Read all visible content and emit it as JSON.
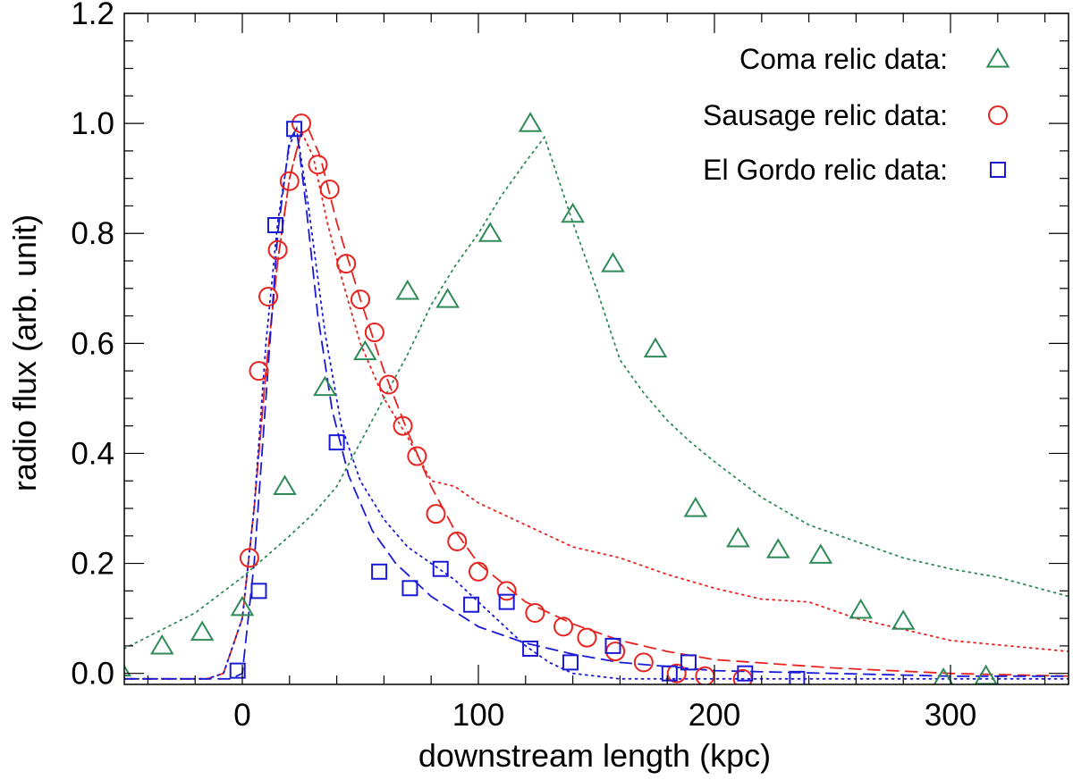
{
  "chart_data": {
    "type": "scatter",
    "title": "",
    "xlabel": "downstream length (kpc)",
    "ylabel": "radio flux (arb. unit)",
    "xlim": [
      -50,
      350
    ],
    "ylim": [
      -0.02,
      1.2
    ],
    "x_ticks": [
      0,
      100,
      200,
      300
    ],
    "x_tick_labels": [
      "0",
      "100",
      "200",
      "300"
    ],
    "y_ticks": [
      0.0,
      0.2,
      0.4,
      0.6,
      0.8,
      1.0,
      1.2
    ],
    "y_tick_labels": [
      "0.0",
      "0.2",
      "0.4",
      "0.6",
      "0.8",
      "1.0",
      "1.2"
    ],
    "grid": false,
    "legend": [
      {
        "label": "Coma relic data:",
        "marker": "triangle",
        "color": "#2e8b57"
      },
      {
        "label": "Sausage relic data:",
        "marker": "circle",
        "color": "#e8231f"
      },
      {
        "label": "El Gordo relic data:",
        "marker": "square",
        "color": "#1a1ad6"
      }
    ],
    "series": [
      {
        "name": "Coma relic data",
        "marker": "triangle",
        "color": "#2e8b57",
        "points": [
          [
            -52,
            0.01
          ],
          [
            -34,
            0.05
          ],
          [
            -17,
            0.075
          ],
          [
            0,
            0.12
          ],
          [
            18,
            0.34
          ],
          [
            35,
            0.52
          ],
          [
            52,
            0.585
          ],
          [
            70,
            0.695
          ],
          [
            87,
            0.68
          ],
          [
            105,
            0.8
          ],
          [
            122,
            1.0
          ],
          [
            140,
            0.835
          ],
          [
            157,
            0.745
          ],
          [
            175,
            0.59
          ],
          [
            192,
            0.3
          ],
          [
            210,
            0.245
          ],
          [
            227,
            0.225
          ],
          [
            245,
            0.215
          ],
          [
            262,
            0.115
          ],
          [
            280,
            0.095
          ],
          [
            297,
            -0.01
          ],
          [
            315,
            -0.005
          ]
        ]
      },
      {
        "name": "Sausage relic data",
        "marker": "circle",
        "color": "#e8231f",
        "points": [
          [
            3,
            0.21
          ],
          [
            7,
            0.55
          ],
          [
            11,
            0.685
          ],
          [
            15,
            0.77
          ],
          [
            20,
            0.895
          ],
          [
            25,
            1.0
          ],
          [
            32,
            0.925
          ],
          [
            37,
            0.88
          ],
          [
            44,
            0.745
          ],
          [
            50,
            0.68
          ],
          [
            56,
            0.62
          ],
          [
            62,
            0.525
          ],
          [
            68,
            0.45
          ],
          [
            74,
            0.395
          ],
          [
            82,
            0.29
          ],
          [
            91,
            0.24
          ],
          [
            100,
            0.185
          ],
          [
            112,
            0.15
          ],
          [
            124,
            0.11
          ],
          [
            136,
            0.085
          ],
          [
            146,
            0.065
          ],
          [
            158,
            0.04
          ],
          [
            170,
            0.02
          ],
          [
            184,
            0.0
          ],
          [
            196,
            -0.005
          ],
          [
            212,
            -0.01
          ]
        ]
      },
      {
        "name": "El Gordo relic data",
        "marker": "square",
        "color": "#1a1ad6",
        "points": [
          [
            -2,
            0.005
          ],
          [
            7,
            0.15
          ],
          [
            14,
            0.815
          ],
          [
            22,
            0.99
          ],
          [
            40,
            0.42
          ],
          [
            58,
            0.185
          ],
          [
            71,
            0.155
          ],
          [
            84,
            0.19
          ],
          [
            97,
            0.125
          ],
          [
            112,
            0.13
          ],
          [
            122,
            0.045
          ],
          [
            139,
            0.02
          ],
          [
            157,
            0.05
          ],
          [
            181,
            0.0
          ],
          [
            189,
            0.02
          ],
          [
            213,
            0.0
          ],
          [
            235,
            -0.01
          ]
        ]
      }
    ],
    "model_curves": [
      {
        "name": "Coma model (dotted)",
        "style": "dotted",
        "color": "#2e8b57",
        "points": [
          [
            -50,
            0.045
          ],
          [
            -20,
            0.11
          ],
          [
            0,
            0.175
          ],
          [
            20,
            0.25
          ],
          [
            30,
            0.29
          ],
          [
            40,
            0.34
          ],
          [
            50,
            0.42
          ],
          [
            60,
            0.5
          ],
          [
            70,
            0.58
          ],
          [
            80,
            0.67
          ],
          [
            90,
            0.74
          ],
          [
            100,
            0.8
          ],
          [
            110,
            0.87
          ],
          [
            120,
            0.93
          ],
          [
            128,
            0.975
          ],
          [
            140,
            0.82
          ],
          [
            150,
            0.7
          ],
          [
            160,
            0.57
          ],
          [
            170,
            0.51
          ],
          [
            180,
            0.46
          ],
          [
            190,
            0.42
          ],
          [
            200,
            0.385
          ],
          [
            220,
            0.32
          ],
          [
            240,
            0.27
          ],
          [
            260,
            0.24
          ],
          [
            280,
            0.21
          ],
          [
            300,
            0.19
          ],
          [
            320,
            0.175
          ],
          [
            350,
            0.14
          ]
        ]
      },
      {
        "name": "Sausage model 1 (dashed)",
        "style": "dashed",
        "color": "#e8231f",
        "points": [
          [
            -50,
            -0.01
          ],
          [
            -15,
            -0.01
          ],
          [
            -8,
            0.0
          ],
          [
            0,
            0.1
          ],
          [
            5,
            0.3
          ],
          [
            10,
            0.55
          ],
          [
            15,
            0.75
          ],
          [
            20,
            0.9
          ],
          [
            25,
            0.985
          ],
          [
            28,
            0.99
          ],
          [
            33,
            0.94
          ],
          [
            40,
            0.82
          ],
          [
            50,
            0.68
          ],
          [
            60,
            0.55
          ],
          [
            70,
            0.44
          ],
          [
            80,
            0.34
          ],
          [
            90,
            0.26
          ],
          [
            100,
            0.2
          ],
          [
            120,
            0.13
          ],
          [
            140,
            0.09
          ],
          [
            160,
            0.06
          ],
          [
            180,
            0.04
          ],
          [
            200,
            0.025
          ],
          [
            250,
            0.01
          ],
          [
            300,
            0.0
          ],
          [
            350,
            -0.005
          ]
        ]
      },
      {
        "name": "Sausage model 2 (dotted)",
        "style": "dotted",
        "color": "#e8231f",
        "points": [
          [
            -50,
            -0.01
          ],
          [
            -15,
            -0.01
          ],
          [
            -8,
            0.0
          ],
          [
            0,
            0.1
          ],
          [
            5,
            0.3
          ],
          [
            10,
            0.55
          ],
          [
            15,
            0.75
          ],
          [
            20,
            0.9
          ],
          [
            25,
            0.985
          ],
          [
            30,
            0.94
          ],
          [
            36,
            0.82
          ],
          [
            42,
            0.72
          ],
          [
            50,
            0.6
          ],
          [
            60,
            0.5
          ],
          [
            70,
            0.43
          ],
          [
            80,
            0.35
          ],
          [
            90,
            0.34
          ],
          [
            100,
            0.31
          ],
          [
            120,
            0.27
          ],
          [
            140,
            0.23
          ],
          [
            160,
            0.21
          ],
          [
            180,
            0.18
          ],
          [
            200,
            0.155
          ],
          [
            220,
            0.135
          ],
          [
            240,
            0.13
          ],
          [
            260,
            0.1
          ],
          [
            280,
            0.08
          ],
          [
            300,
            0.06
          ],
          [
            350,
            0.04
          ]
        ]
      },
      {
        "name": "El Gordo model 1 (dashed)",
        "style": "dashed",
        "color": "#1a1ad6",
        "points": [
          [
            -50,
            -0.01
          ],
          [
            -5,
            -0.01
          ],
          [
            0,
            0.0
          ],
          [
            5,
            0.2
          ],
          [
            10,
            0.5
          ],
          [
            15,
            0.8
          ],
          [
            20,
            0.97
          ],
          [
            23,
            0.99
          ],
          [
            27,
            0.85
          ],
          [
            32,
            0.65
          ],
          [
            38,
            0.48
          ],
          [
            45,
            0.36
          ],
          [
            55,
            0.26
          ],
          [
            65,
            0.2
          ],
          [
            80,
            0.14
          ],
          [
            100,
            0.085
          ],
          [
            120,
            0.055
          ],
          [
            140,
            0.035
          ],
          [
            160,
            0.02
          ],
          [
            200,
            0.005
          ],
          [
            250,
            0.0
          ],
          [
            300,
            -0.005
          ],
          [
            350,
            -0.005
          ]
        ]
      },
      {
        "name": "El Gordo model 2 (dotted)",
        "style": "dotted",
        "color": "#1a1ad6",
        "points": [
          [
            -50,
            -0.01
          ],
          [
            -15,
            -0.01
          ],
          [
            -8,
            0.0
          ],
          [
            0,
            0.1
          ],
          [
            5,
            0.3
          ],
          [
            10,
            0.6
          ],
          [
            15,
            0.82
          ],
          [
            20,
            0.96
          ],
          [
            23,
            0.99
          ],
          [
            28,
            0.85
          ],
          [
            35,
            0.62
          ],
          [
            42,
            0.45
          ],
          [
            50,
            0.35
          ],
          [
            60,
            0.28
          ],
          [
            70,
            0.23
          ],
          [
            80,
            0.2
          ],
          [
            90,
            0.17
          ],
          [
            100,
            0.13
          ],
          [
            110,
            0.09
          ],
          [
            120,
            0.05
          ],
          [
            130,
            0.02
          ],
          [
            140,
            0.0
          ],
          [
            160,
            -0.01
          ],
          [
            200,
            -0.01
          ],
          [
            350,
            -0.01
          ]
        ]
      }
    ]
  }
}
